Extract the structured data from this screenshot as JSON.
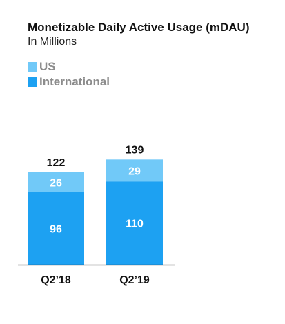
{
  "chart_data": {
    "type": "bar",
    "stacked": true,
    "title": "Monetizable Daily Active Usage (mDAU)",
    "subtitle": "In Millions",
    "categories": [
      "Q2’18",
      "Q2’19"
    ],
    "series": [
      {
        "name": "International",
        "values": [
          96,
          110
        ],
        "color": "#1DA1F2"
      },
      {
        "name": "US",
        "values": [
          26,
          29
        ],
        "color": "#71C9F8"
      }
    ],
    "totals": [
      122,
      139
    ],
    "legend": [
      "US",
      "International"
    ],
    "legend_position": "top-left",
    "grid": false,
    "ylim": [
      0,
      139
    ]
  }
}
